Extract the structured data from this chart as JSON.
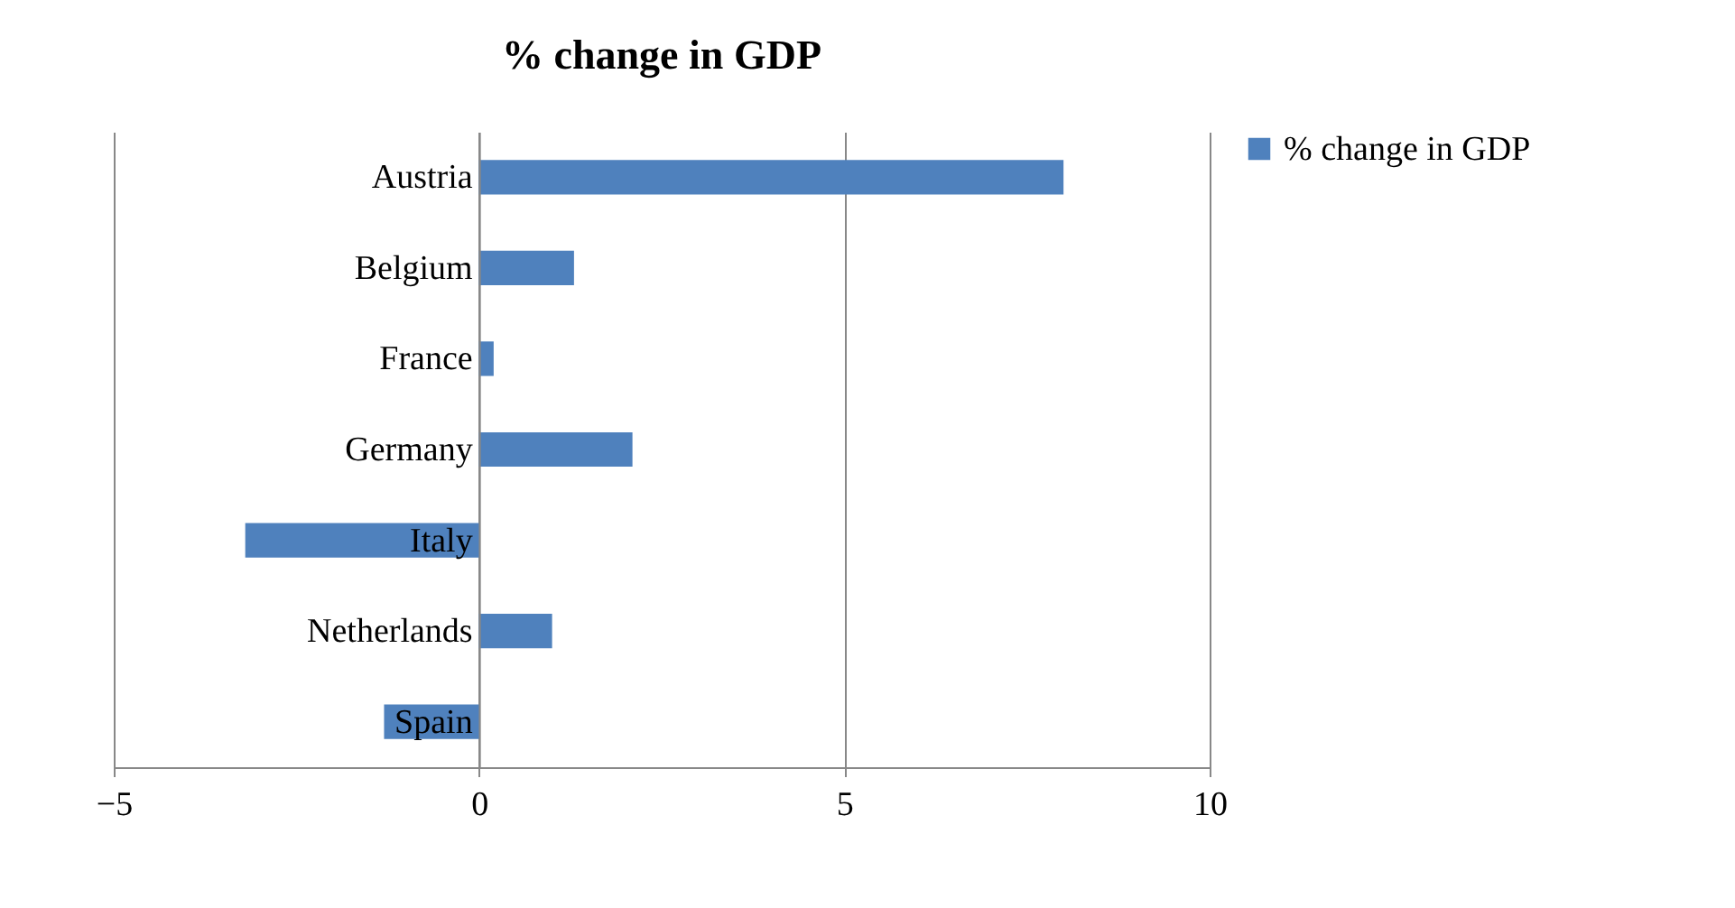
{
  "chart_data": {
    "type": "bar",
    "orientation": "horizontal",
    "title": "% change in GDP",
    "categories": [
      "Austria",
      "Belgium",
      "France",
      "Germany",
      "Italy",
      "Netherlands",
      "Spain"
    ],
    "series": [
      {
        "name": "% change in GDP",
        "color": "#4f81bd",
        "values": [
          8.0,
          1.3,
          0.2,
          2.1,
          -3.2,
          1.0,
          -1.3
        ]
      }
    ],
    "xlim": [
      -5,
      10
    ],
    "xticks": [
      -5,
      0,
      5,
      10
    ],
    "grid": "x",
    "legend": "right"
  }
}
